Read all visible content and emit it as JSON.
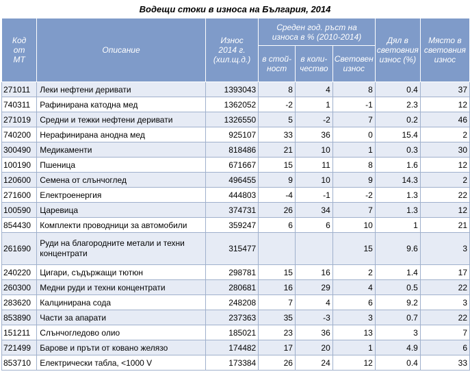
{
  "title": "Водещи стоки в износа на България, 2014",
  "headers": {
    "code": [
      "Код",
      "от",
      "МТ"
    ],
    "description": "Описание",
    "export": [
      "Износ",
      "2014 г.",
      "(хил.щ.д.)"
    ],
    "growth_group": [
      "Среден год. ръст на",
      "износа в % (2010-2014)"
    ],
    "value": [
      "в стой-",
      "ност"
    ],
    "quantity": [
      "в коли-",
      "чество"
    ],
    "world": [
      "Световен",
      "износ"
    ],
    "share": [
      "Дял в",
      "световния",
      "износ (%)"
    ],
    "rank": [
      "Място в",
      "световния",
      "износ"
    ]
  },
  "rows": [
    {
      "code": "271011",
      "desc": "Леки нефтени деривати",
      "export": "1393043",
      "value": "8",
      "qty": "4",
      "world": "8",
      "share": "0.4",
      "rank": "37"
    },
    {
      "code": "740311",
      "desc": "Рафинирана катодна мед",
      "export": "1362052",
      "value": "-2",
      "qty": "1",
      "world": "-1",
      "share": "2.3",
      "rank": "12"
    },
    {
      "code": "271019",
      "desc": "Средни и тежки нефтени деривати",
      "export": "1326550",
      "value": "5",
      "qty": "-2",
      "world": "7",
      "share": "0.2",
      "rank": "46"
    },
    {
      "code": "740200",
      "desc": "Нерафинирана анодна мед",
      "export": "925107",
      "value": "33",
      "qty": "36",
      "world": "0",
      "share": "15.4",
      "rank": "2"
    },
    {
      "code": "300490",
      "desc": "Медикаменти",
      "export": "818486",
      "value": "21",
      "qty": "10",
      "world": "1",
      "share": "0.3",
      "rank": "30"
    },
    {
      "code": "100190",
      "desc": "Пшеница",
      "export": "671667",
      "value": "15",
      "qty": "11",
      "world": "8",
      "share": "1.6",
      "rank": "12"
    },
    {
      "code": "120600",
      "desc": "Семена от слънчоглед",
      "export": "496455",
      "value": "9",
      "qty": "10",
      "world": "9",
      "share": "14.3",
      "rank": "2"
    },
    {
      "code": "271600",
      "desc": "Електроенергия",
      "export": "444803",
      "value": "-4",
      "qty": "-1",
      "world": "-2",
      "share": "1.3",
      "rank": "22"
    },
    {
      "code": "100590",
      "desc": "Царевица",
      "export": "374731",
      "value": "26",
      "qty": "34",
      "world": "7",
      "share": "1.3",
      "rank": "12"
    },
    {
      "code": "854430",
      "desc": "Комплекти проводници за автомобили",
      "export": "359247",
      "value": "6",
      "qty": "6",
      "world": "10",
      "share": "1",
      "rank": "21"
    },
    {
      "code": "261690",
      "desc": "Руди на благородните метали и техни концентрати",
      "export": "315477",
      "value": "",
      "qty": "",
      "world": "15",
      "share": "9.6",
      "rank": "3",
      "tall": true
    },
    {
      "code": "240220",
      "desc": "Цигари, съдържащи тютюн",
      "export": "298781",
      "value": "15",
      "qty": "16",
      "world": "2",
      "share": "1.4",
      "rank": "17"
    },
    {
      "code": "260300",
      "desc": "Медни руди и техни концентрати",
      "export": "280681",
      "value": "16",
      "qty": "29",
      "world": "4",
      "share": "0.5",
      "rank": "22"
    },
    {
      "code": "283620",
      "desc": "Калцинирана сода",
      "export": "248208",
      "value": "7",
      "qty": "4",
      "world": "6",
      "share": "9.2",
      "rank": "3"
    },
    {
      "code": "853890",
      "desc": "Части за апарати",
      "export": "237363",
      "value": "35",
      "qty": "-3",
      "world": "3",
      "share": "0.7",
      "rank": "22"
    },
    {
      "code": "151211",
      "desc": "Слънчогледово олио",
      "export": "185021",
      "value": "23",
      "qty": "36",
      "world": "13",
      "share": "3",
      "rank": "7"
    },
    {
      "code": "721499",
      "desc": "Барове и пръти от ковано желязо",
      "export": "174482",
      "value": "17",
      "qty": "20",
      "world": "1",
      "share": "4.9",
      "rank": "6"
    },
    {
      "code": "853710",
      "desc": "Електрически табла, <1000 V",
      "export": "173384",
      "value": "26",
      "qty": "24",
      "world": "12",
      "share": "0.4",
      "rank": "33"
    }
  ]
}
